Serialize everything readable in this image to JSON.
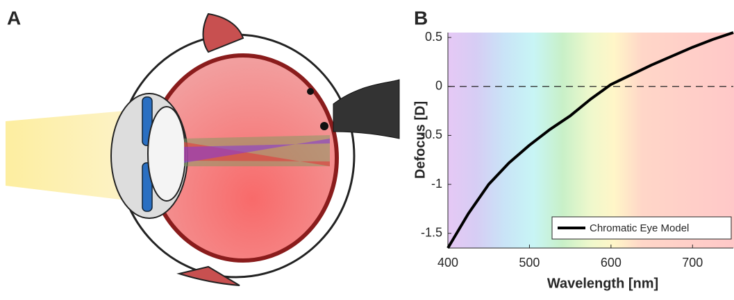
{
  "panel_labels": [
    "A",
    "B"
  ],
  "chart_data": {
    "type": "line",
    "x_label": "Wavelength [nm]",
    "y_label": "Defocus [D]",
    "x": [
      400,
      425,
      450,
      475,
      500,
      525,
      550,
      575,
      600,
      625,
      650,
      675,
      700,
      725,
      750
    ],
    "series": [
      {
        "name": "Chromatic Eye Model",
        "color": "#000000",
        "values": [
          -1.65,
          -1.3,
          -1.0,
          -0.78,
          -0.6,
          -0.44,
          -0.3,
          -0.13,
          0.02,
          0.12,
          0.22,
          0.31,
          0.4,
          0.48,
          0.55
        ]
      }
    ],
    "xlim": [
      400,
      750
    ],
    "xticks": [
      400,
      500,
      600,
      700
    ],
    "ylim": [
      -1.65,
      0.55
    ],
    "yticks": [
      0.5,
      0,
      -0.5,
      -1,
      -1.5
    ],
    "hline": 0,
    "legend": "lower right"
  }
}
